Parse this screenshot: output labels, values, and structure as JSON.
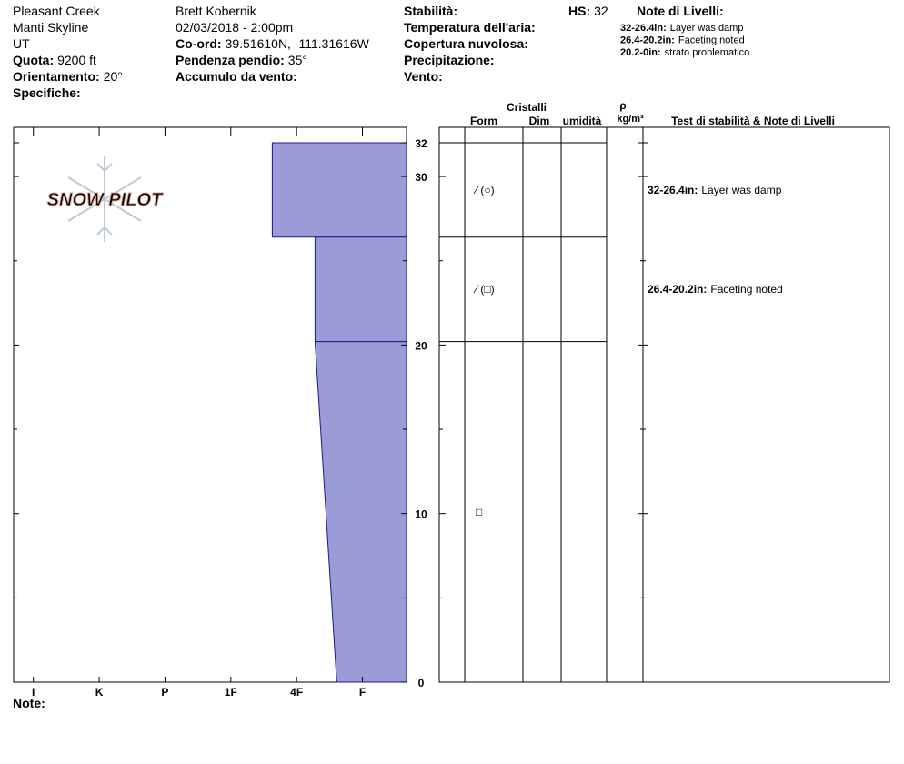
{
  "header": {
    "location": "Pleasant Creek",
    "range": "Manti Skyline",
    "state": "UT",
    "elevation": {
      "label": "Quota:",
      "value": "9200 ft"
    },
    "aspect": {
      "label": "Orientamento:",
      "value": "20°"
    },
    "specifics": {
      "label": "Specifiche:"
    },
    "observer": "Brett Kobernik",
    "datetime": "02/03/2018 - 2:00pm",
    "coords": {
      "label": "Co-ord:",
      "value": "39.51610N, -111.31616W"
    },
    "slope": {
      "label": "Pendenza pendio:",
      "value": "35°"
    },
    "wind_loading": {
      "label": "Accumulo da vento:"
    },
    "stability": {
      "label": "Stabilità:"
    },
    "air_temp": {
      "label": "Temperatura dell'aria:"
    },
    "sky": {
      "label": "Copertura nuvolosa:"
    },
    "precip": {
      "label": "Precipitazione:"
    },
    "wind": {
      "label": "Vento:"
    },
    "hs": {
      "label": "HS:",
      "value": "32"
    },
    "layer_notes_title": "Note di Livelli:"
  },
  "logo": "SNOW PILOT",
  "table_headers": {
    "crystals": "Cristalli",
    "form": "Form",
    "size": "Dim",
    "moisture": "umidità",
    "density": "ρ",
    "density_unit": "kg/m³",
    "tests": "Test di stabilità & Note di Livelli"
  },
  "footer": {
    "note": "Note:"
  },
  "chart_data": {
    "type": "hardness-profile",
    "xlim": [
      -0.3,
      5.67
    ],
    "xticks": [
      {
        "value": 0,
        "label": "I"
      },
      {
        "value": 1,
        "label": "K"
      },
      {
        "value": 2,
        "label": "P"
      },
      {
        "value": 3,
        "label": "1F"
      },
      {
        "value": 4,
        "label": "4F"
      },
      {
        "value": 5,
        "label": "F"
      }
    ],
    "ylim": [
      0,
      32
    ],
    "yticks": [
      0,
      10,
      20,
      30,
      32
    ],
    "minor_yticks": [
      5,
      15,
      25
    ],
    "color": "#9b9bd7",
    "layers": [
      {
        "top": 32,
        "bottom": 26.4,
        "hardness_top": 3.63,
        "hardness_bottom": 3.63,
        "form": "⁄ (○)",
        "range_label": "32-26.4in:",
        "note": "Layer was damp",
        "show_note": true
      },
      {
        "top": 26.4,
        "bottom": 20.2,
        "hardness_top": 4.28,
        "hardness_bottom": 4.28,
        "form": "⁄ (□)",
        "range_label": "26.4-20.2in:",
        "note": "Faceting noted",
        "show_note": true
      },
      {
        "top": 20.2,
        "bottom": 0,
        "hardness_top": 4.28,
        "hardness_bottom": 4.61,
        "form": "□",
        "range_label": "20.2-0in:",
        "note": "strato problematico",
        "show_note": false
      }
    ]
  }
}
